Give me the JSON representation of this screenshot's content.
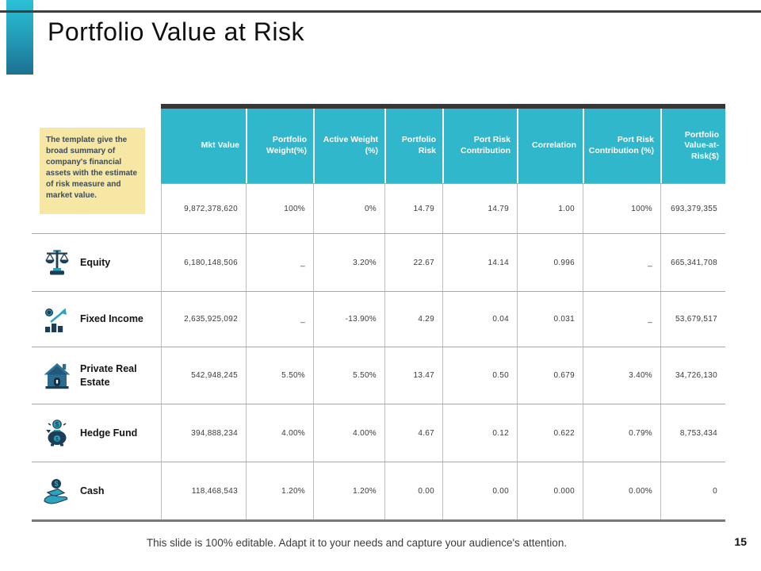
{
  "slide": {
    "title": "Portfolio Value at Risk",
    "note_text": "The template  give the broad summary of company's financial assets with the estimate of risk measure and market value.",
    "footer_text": "This slide is 100% editable. Adapt it to your needs and capture your audience's attention.",
    "page_number": "15"
  },
  "table": {
    "columns": [
      "Mkt Value",
      "Portfolio Weight(%)",
      "Active Weight (%)",
      "Portfolio Risk",
      "Port Risk Contribution",
      "Correlation",
      "Port Risk Contribution (%)",
      "Portfolio Value-at-Risk($)"
    ],
    "rows": [
      {
        "label": "",
        "icon": "",
        "values": [
          "9,872,378,620",
          "100%",
          "0%",
          "14.79",
          "14.79",
          "1.00",
          "100%",
          "693,379,355"
        ]
      },
      {
        "label": "Equity",
        "icon": "balance-scale-icon",
        "values": [
          "6,180,148,506",
          "_",
          "3.20%",
          "22.67",
          "14.14",
          "0.996",
          "_",
          "665,341,708"
        ]
      },
      {
        "label": "Fixed Income",
        "icon": "growth-chart-icon",
        "values": [
          "2,635,925,092",
          "_",
          "-13.90%",
          "4.29",
          "0.04",
          "0.031",
          "_",
          "53,679,517"
        ]
      },
      {
        "label": "Private Real Estate",
        "icon": "house-icon",
        "values": [
          "542,948,245",
          "5.50%",
          "5.50%",
          "13.47",
          "0.50",
          "0.679",
          "3.40%",
          "34,726,130"
        ]
      },
      {
        "label": "Hedge Fund",
        "icon": "piggy-bank-icon",
        "values": [
          "394,888,234",
          "4.00%",
          "4.00%",
          "4.67",
          "0.12",
          "0.622",
          "0.79%",
          "8,753,434"
        ]
      },
      {
        "label": "Cash",
        "icon": "cash-hand-icon",
        "values": [
          "118,468,543",
          "1.20%",
          "1.20%",
          "0.00",
          "0.00",
          "0.000",
          "0.00%",
          "0"
        ]
      }
    ]
  },
  "colors": {
    "header_teal": "#30b7cb",
    "accent_bar_top": "#2bc1d6",
    "accent_bar_bottom": "#1c7190",
    "note_bg": "#f6e8a4",
    "top_rule": "#3f3f3f",
    "icon_navy": "#1d3e54",
    "icon_teal": "#2da4bf"
  }
}
